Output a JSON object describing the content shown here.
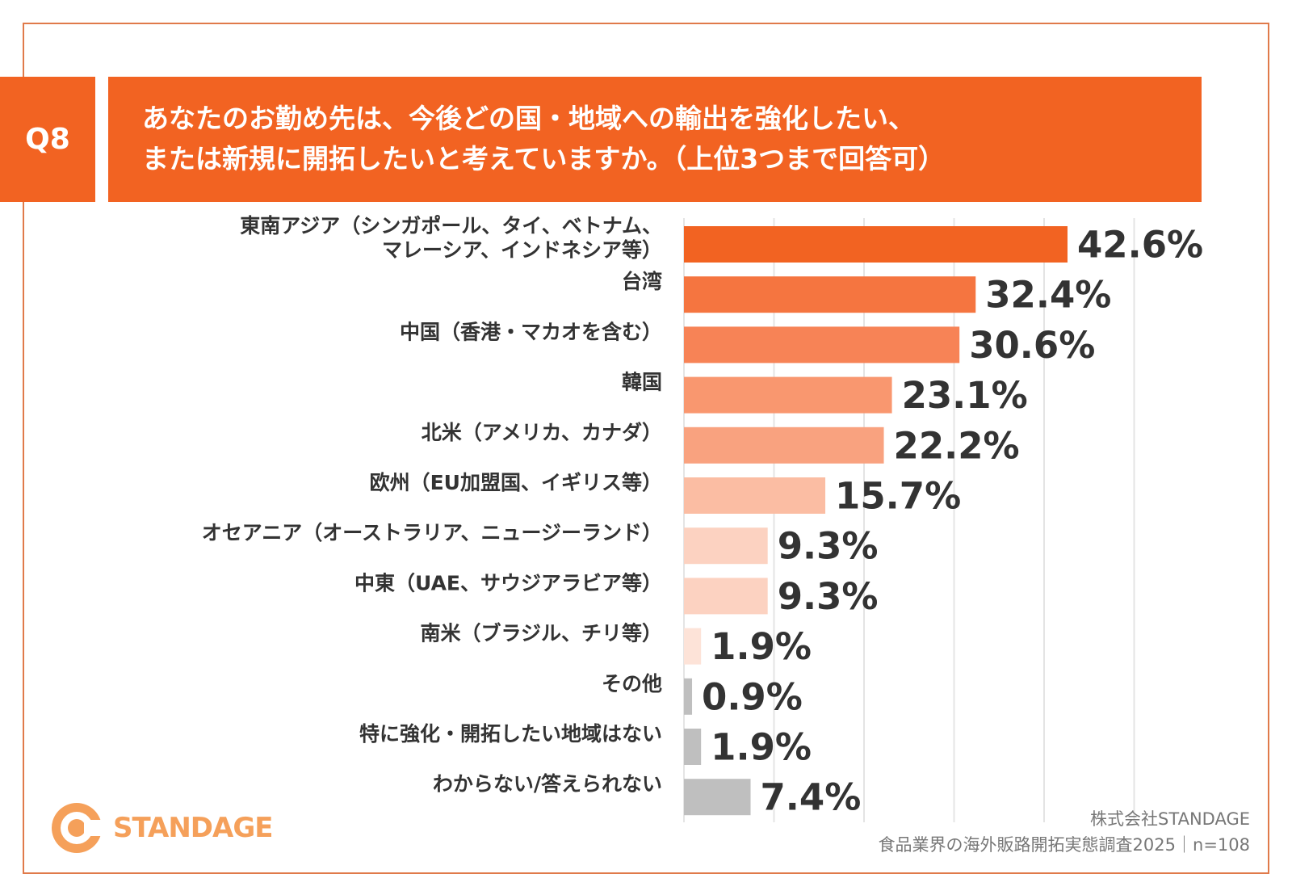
{
  "question": {
    "badge": "Q8",
    "line1": "あなたのお勤め先は、今後どの国・地域への輸出を強化したい、",
    "line2": "または新規に開拓したいと考えていますか。（上位3つまで回答可）"
  },
  "chart_data": {
    "type": "bar",
    "orientation": "horizontal",
    "title": "あなたのお勤め先は、今後どの国・地域への輸出を強化したい、または新規に開拓したいと考えていますか。（上位3つまで回答可）",
    "unit": "%",
    "xlim": [
      0,
      60
    ],
    "grid": true,
    "categories": [
      [
        "東南アジア（シンガポール、タイ、ベトナム、",
        "マレーシア、インドネシア等）"
      ],
      [
        "台湾"
      ],
      [
        "中国（香港・マカオを含む）"
      ],
      [
        "韓国"
      ],
      [
        "北米（アメリカ、カナダ）"
      ],
      [
        "欧州（EU加盟国、イギリス等）"
      ],
      [
        "オセアニア（オーストラリア、ニュージーランド）"
      ],
      [
        "中東（UAE、サウジアラビア等）"
      ],
      [
        "南米（ブラジル、チリ等）"
      ],
      [
        "その他"
      ],
      [
        "特に強化・開拓したい地域はない"
      ],
      [
        "わからない/答えられない"
      ]
    ],
    "values": [
      42.6,
      32.4,
      30.6,
      23.1,
      22.2,
      15.7,
      9.3,
      9.3,
      1.9,
      0.9,
      1.9,
      7.4
    ],
    "value_labels": [
      "42.6%",
      "32.4%",
      "30.6%",
      "23.1%",
      "22.2%",
      "15.7%",
      "9.3%",
      "9.3%",
      "1.9%",
      "0.9%",
      "1.9%",
      "7.4%"
    ],
    "colors": [
      "#f26322",
      "#f57540",
      "#f78356",
      "#f9976f",
      "#f9a27f",
      "#fbbda3",
      "#fcd2c1",
      "#fcd2c1",
      "#fde3d8",
      "#bfbfbf",
      "#bfbfbf",
      "#bfbfbf"
    ],
    "grid_color": "#e4e4e4"
  },
  "footer": {
    "logo_text": "STANDAGE",
    "company": "株式会社STANDAGE",
    "source": "食品業界の海外販路開拓実態調査2025｜n=108"
  },
  "colors": {
    "accent": "#f26322",
    "frame": "#e07a4a",
    "logo": "#f5a05a",
    "text": "#333333"
  }
}
